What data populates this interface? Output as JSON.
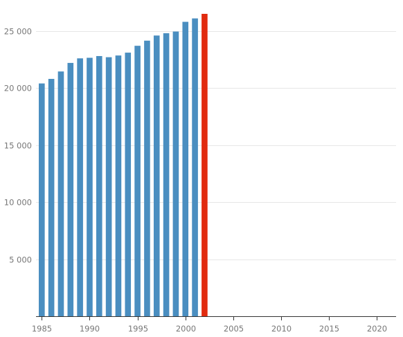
{
  "chart_data": {
    "type": "bar",
    "title": "",
    "xlabel": "",
    "ylabel": "",
    "x": [
      1985,
      1986,
      1987,
      1988,
      1989,
      1990,
      1991,
      1992,
      1993,
      1994,
      1995,
      1996,
      1997,
      1998,
      1999,
      2000,
      2001,
      2002
    ],
    "values": [
      20400,
      20800,
      21450,
      22200,
      22600,
      22650,
      22800,
      22700,
      22850,
      23100,
      23700,
      24150,
      24600,
      24800,
      24950,
      25800,
      26100,
      26500
    ],
    "highlight_index": 17,
    "colors": {
      "bar": "#4a8ec0",
      "highlight": "#e12b0f",
      "grid": "#e6e6e6",
      "axis": "#333333",
      "tick_text": "#777777"
    },
    "xlim": [
      1984.4,
      2022
    ],
    "ylim": [
      0,
      26500
    ],
    "x_ticks": [
      1985,
      1990,
      1995,
      2000,
      2005,
      2010,
      2015,
      2020
    ],
    "y_ticks": [
      5000,
      10000,
      15000,
      20000,
      25000
    ],
    "x_tick_labels": [
      "1985",
      "1990",
      "1995",
      "2000",
      "2005",
      "2010",
      "2015",
      "2020"
    ],
    "y_tick_labels": [
      "5 000",
      "10 000",
      "15 000",
      "20 000",
      "25 000"
    ],
    "grid": true,
    "legend": "none"
  }
}
